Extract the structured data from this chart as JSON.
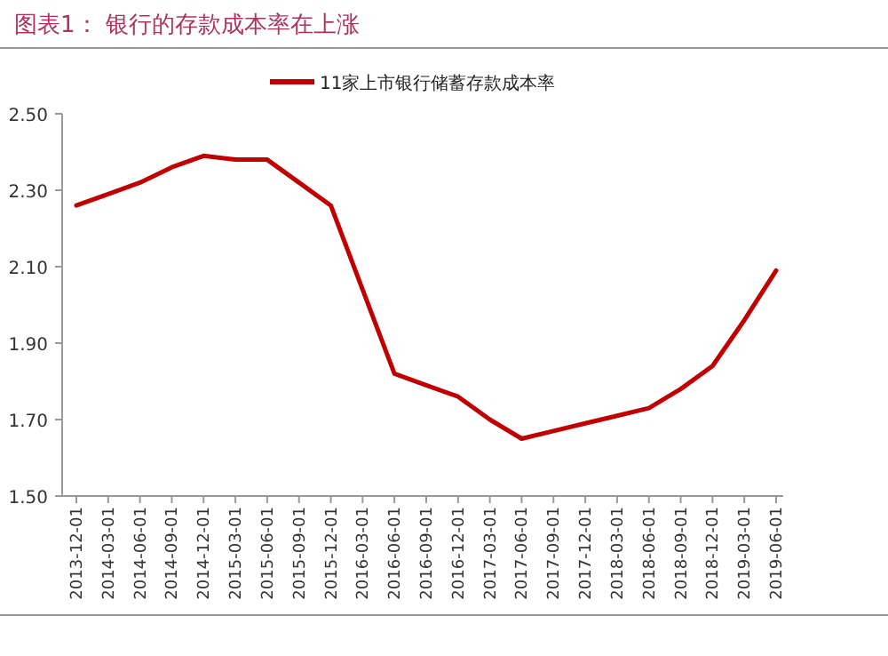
{
  "chart_data": {
    "type": "line",
    "title": "图表1：  银行的存款成本率在上涨",
    "categories": [
      "2013-12-01",
      "2014-03-01",
      "2014-06-01",
      "2014-09-01",
      "2014-12-01",
      "2015-03-01",
      "2015-06-01",
      "2015-09-01",
      "2015-12-01",
      "2016-03-01",
      "2016-06-01",
      "2016-09-01",
      "2016-12-01",
      "2017-03-01",
      "2017-06-01",
      "2017-09-01",
      "2017-12-01",
      "2018-03-01",
      "2018-06-01",
      "2018-09-01",
      "2018-12-01",
      "2019-03-01",
      "2019-06-01"
    ],
    "series": [
      {
        "name": "11家上市银行储蓄存款成本率",
        "color": "#c00000",
        "values": [
          2.26,
          2.29,
          2.32,
          2.36,
          2.39,
          2.38,
          2.38,
          2.32,
          2.26,
          2.04,
          1.82,
          1.79,
          1.76,
          1.7,
          1.65,
          1.67,
          1.69,
          1.71,
          1.73,
          1.78,
          1.84,
          1.96,
          2.09
        ]
      }
    ],
    "ylim": [
      1.5,
      2.5
    ],
    "yticks": [
      {
        "value": 1.5,
        "label": "1.50"
      },
      {
        "value": 1.7,
        "label": "1.70"
      },
      {
        "value": 1.9,
        "label": "1.90"
      },
      {
        "value": 2.1,
        "label": "2.10"
      },
      {
        "value": 2.3,
        "label": "2.30"
      },
      {
        "value": 2.5,
        "label": "2.50"
      }
    ],
    "legend": "top",
    "grid": false,
    "marker": "none",
    "line_style": "solid"
  }
}
